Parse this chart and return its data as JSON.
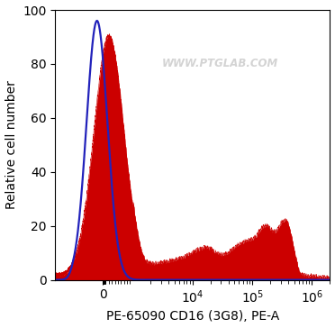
{
  "xlabel": "PE-65090 CD16 (3G8), PE-A",
  "ylabel": "Relative cell number",
  "ylim": [
    0,
    100
  ],
  "background_color": "#ffffff",
  "plot_bg_color": "#ffffff",
  "watermark": "WWW.PTGLAB.COM",
  "blue_line_color": "#2222bb",
  "red_fill_color": "#cc0000",
  "tick_label_fontsize": 10,
  "axis_label_fontsize": 10,
  "linthresh": 1000
}
